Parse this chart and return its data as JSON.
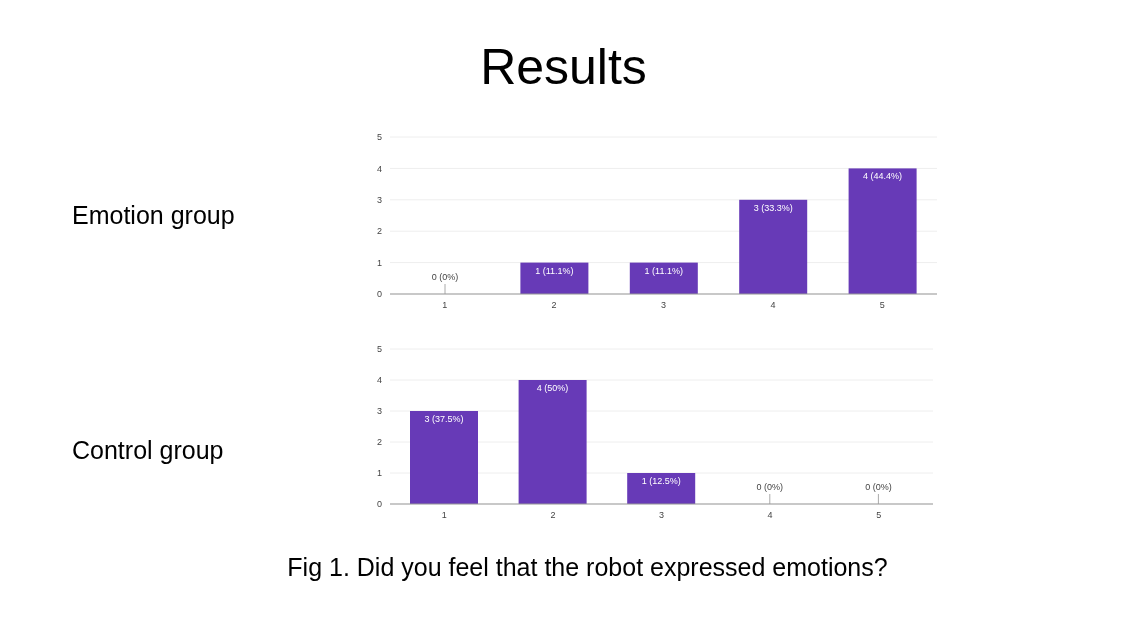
{
  "chart_data": [
    {
      "type": "bar",
      "title": "Results",
      "ylabel": "Emotion group",
      "categories": [
        "1",
        "2",
        "3",
        "4",
        "5"
      ],
      "values": [
        0,
        1,
        1,
        3,
        4
      ],
      "color": "#673ab7",
      "ylim": [
        0,
        5
      ],
      "yticks": [
        0,
        1,
        2,
        3,
        4,
        5
      ],
      "grid": "y",
      "value_labels": [
        "0 (0%)",
        "1 (11.1%)",
        "1 (11.1%)",
        "3 (33.3%)",
        "4 (44.4%)"
      ]
    },
    {
      "type": "bar",
      "ylabel": "Control group",
      "categories": [
        "1",
        "2",
        "3",
        "4",
        "5"
      ],
      "values": [
        3,
        4,
        1,
        0,
        0
      ],
      "color": "#673ab7",
      "ylim": [
        0,
        5
      ],
      "yticks": [
        0,
        1,
        2,
        3,
        4,
        5
      ],
      "grid": "y",
      "value_labels": [
        "3 (37.5%)",
        "4 (50%)",
        "1 (12.5%)",
        "0 (0%)",
        "0 (0%)"
      ],
      "annotations": [
        "Fig 1. Did you feel that the robot expressed emotions?"
      ]
    }
  ]
}
